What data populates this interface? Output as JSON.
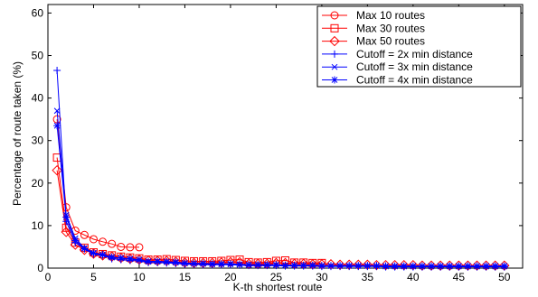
{
  "chart_data": {
    "type": "line",
    "xlabel": "K-th shortest route",
    "ylabel": "Percentage of route taken (%)",
    "xlim": [
      0,
      52
    ],
    "ylim": [
      0,
      62
    ],
    "xticks": [
      0,
      5,
      10,
      15,
      20,
      25,
      30,
      35,
      40,
      45,
      50
    ],
    "yticks": [
      0,
      10,
      20,
      30,
      40,
      50,
      60
    ],
    "grid": false,
    "legend_position": "top-right",
    "series": [
      {
        "name": "Max 10 routes",
        "color": "#ff0000",
        "marker": "circle",
        "x": [
          1,
          2,
          3,
          4,
          5,
          6,
          7,
          8,
          9,
          10
        ],
        "y": [
          35,
          14.3,
          8.8,
          7.8,
          6.8,
          6.2,
          5.7,
          5.0,
          4.9,
          4.9
        ]
      },
      {
        "name": "Max 30 routes",
        "color": "#ff0000",
        "marker": "square",
        "x": [
          1,
          2,
          3,
          4,
          5,
          6,
          7,
          8,
          9,
          10,
          11,
          12,
          13,
          14,
          15,
          16,
          17,
          18,
          19,
          20,
          21,
          22,
          23,
          24,
          25,
          26,
          27,
          28,
          29,
          30
        ],
        "y": [
          26,
          9.5,
          6,
          4.8,
          3.7,
          3.3,
          3.0,
          2.7,
          2.5,
          2.3,
          2.0,
          2.0,
          2.1,
          1.9,
          1.7,
          1.6,
          1.6,
          1.6,
          1.7,
          1.9,
          2.0,
          1.4,
          1.3,
          1.4,
          1.7,
          1.8,
          1.3,
          1.3,
          1.2,
          1.2
        ]
      },
      {
        "name": "Max 50 routes",
        "color": "#ff0000",
        "marker": "diamond",
        "x": [
          1,
          2,
          3,
          4,
          5,
          6,
          7,
          8,
          9,
          10,
          11,
          12,
          13,
          14,
          15,
          16,
          17,
          18,
          19,
          20,
          21,
          22,
          23,
          24,
          25,
          26,
          27,
          28,
          29,
          30,
          31,
          32,
          33,
          34,
          35,
          36,
          37,
          38,
          39,
          40,
          41,
          42,
          43,
          44,
          45,
          46,
          47,
          48,
          49,
          50
        ],
        "y": [
          23,
          8.5,
          5.5,
          4.3,
          3.4,
          3.0,
          2.7,
          2.4,
          2.2,
          2.0,
          1.8,
          1.7,
          1.7,
          1.5,
          1.3,
          1.2,
          1.2,
          1.2,
          1.3,
          1.4,
          1.4,
          1.0,
          1.0,
          1.0,
          1.2,
          1.2,
          1.0,
          1.0,
          0.9,
          0.9,
          0.9,
          0.8,
          0.8,
          0.8,
          0.8,
          0.7,
          0.7,
          0.7,
          0.7,
          0.7,
          0.6,
          0.6,
          0.6,
          0.6,
          0.6,
          0.6,
          0.6,
          0.6,
          0.6,
          0.6
        ]
      },
      {
        "name": "Cutoff = 2x min distance",
        "color": "#0000ff",
        "marker": "plus",
        "x": [
          1,
          2,
          3,
          4,
          5,
          6,
          7,
          8,
          9,
          10,
          11,
          12,
          13,
          14,
          15,
          16,
          17,
          18,
          19,
          20,
          21,
          22,
          23,
          24,
          25,
          26,
          27,
          28,
          29,
          30,
          31,
          32,
          33,
          34,
          35,
          36,
          37,
          38,
          39,
          40,
          41,
          42,
          43,
          44,
          45,
          46,
          47,
          48,
          49,
          50
        ],
        "y": [
          46.5,
          11,
          6,
          4.5,
          3.3,
          3.0,
          2.2,
          2.0,
          1.8,
          1.7,
          1.3,
          1.3,
          1.2,
          1.1,
          0.9,
          0.9,
          0.8,
          0.8,
          0.8,
          0.8,
          0.7,
          0.6,
          0.6,
          0.6,
          0.6,
          0.5,
          0.5,
          0.5,
          0.5,
          0.4,
          0.4,
          0.4,
          0.4,
          0.4,
          0.4,
          0.4,
          0.3,
          0.3,
          0.3,
          0.3,
          0.3,
          0.3,
          0.3,
          0.3,
          0.3,
          0.3,
          0.3,
          0.3,
          0.3,
          0.3
        ]
      },
      {
        "name": "Cutoff = 3x min distance",
        "color": "#0000ff",
        "marker": "x",
        "x": [
          1,
          2,
          3,
          4,
          5,
          6,
          7,
          8,
          9,
          10,
          11,
          12,
          13,
          14,
          15,
          16,
          17,
          18,
          19,
          20,
          21,
          22,
          23,
          24,
          25,
          26,
          27,
          28,
          29,
          30,
          31,
          32,
          33,
          34,
          35,
          36,
          37,
          38,
          39,
          40,
          41,
          42,
          43,
          44,
          45,
          46,
          47,
          48,
          49,
          50
        ],
        "y": [
          37,
          12.5,
          7,
          4.7,
          3.6,
          3.1,
          2.5,
          2.3,
          2.1,
          1.9,
          1.5,
          1.5,
          1.4,
          1.3,
          1.1,
          1.0,
          1.0,
          0.9,
          0.9,
          0.9,
          0.8,
          0.7,
          0.7,
          0.7,
          0.7,
          0.6,
          0.6,
          0.6,
          0.6,
          0.5,
          0.5,
          0.5,
          0.5,
          0.5,
          0.5,
          0.5,
          0.4,
          0.4,
          0.4,
          0.4,
          0.4,
          0.4,
          0.4,
          0.4,
          0.4,
          0.4,
          0.4,
          0.4,
          0.4,
          0.4
        ]
      },
      {
        "name": "Cutoff = 4x min distance",
        "color": "#0000ff",
        "marker": "star",
        "x": [
          1,
          2,
          3,
          4,
          5,
          6,
          7,
          8,
          9,
          10,
          11,
          12,
          13,
          14,
          15,
          16,
          17,
          18,
          19,
          20,
          21,
          22,
          23,
          24,
          25,
          26,
          27,
          28,
          29,
          30,
          31,
          32,
          33,
          34,
          35,
          36,
          37,
          38,
          39,
          40,
          41,
          42,
          43,
          44,
          45,
          46,
          47,
          48,
          49,
          50
        ],
        "y": [
          33.5,
          12,
          6.5,
          4.6,
          3.5,
          3.2,
          2.6,
          2.4,
          2.2,
          2.0,
          1.6,
          1.6,
          1.5,
          1.4,
          1.2,
          1.1,
          1.1,
          1.0,
          1.0,
          1.0,
          0.9,
          0.8,
          0.8,
          0.8,
          0.8,
          0.7,
          0.7,
          0.7,
          0.7,
          0.6,
          0.6,
          0.6,
          0.6,
          0.6,
          0.6,
          0.6,
          0.5,
          0.5,
          0.5,
          0.5,
          0.5,
          0.5,
          0.5,
          0.5,
          0.5,
          0.5,
          0.5,
          0.5,
          0.5,
          0.5
        ]
      }
    ]
  }
}
